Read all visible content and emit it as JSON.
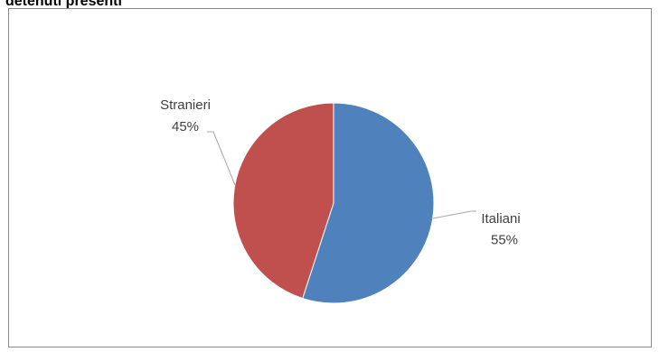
{
  "chart_data": {
    "type": "pie",
    "title": "detenuti presenti",
    "slices": [
      {
        "label": "Italiani",
        "value": 55,
        "value_label": "55%",
        "color": "#4F81BD"
      },
      {
        "label": "Stranieri",
        "value": 45,
        "value_label": "45%",
        "color": "#C0504D"
      }
    ],
    "legend": "none",
    "data_labels": "outside with leader lines"
  }
}
